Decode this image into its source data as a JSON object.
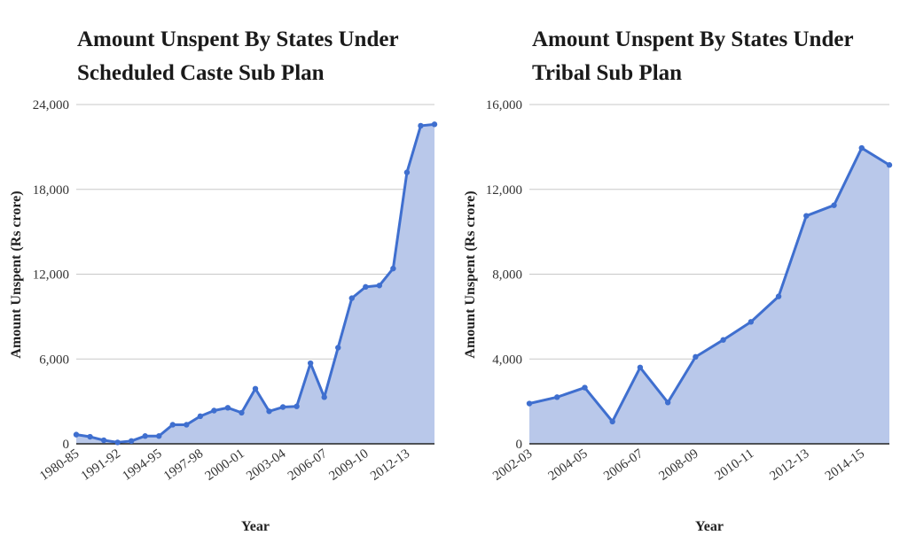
{
  "chart_data": [
    {
      "type": "area",
      "title": "Amount Unspent By States Under Scheduled Caste Sub Plan",
      "xlabel": "Year",
      "ylabel": "Amount Unspent (Rs crore)",
      "ylim": [
        0,
        24000
      ],
      "yticks": [
        "0",
        "6,000",
        "12,000",
        "18,000",
        "24,000"
      ],
      "ytick_values": [
        0,
        6000,
        12000,
        18000,
        24000
      ],
      "xtick_labels": [
        "1980-85",
        "1991-92",
        "1994-95",
        "1997-98",
        "2000-01",
        "2003-04",
        "2006-07",
        "2009-10",
        "2012-13"
      ],
      "xtick_indices": [
        0,
        3,
        6,
        9,
        12,
        15,
        18,
        21,
        24
      ],
      "values": [
        650,
        500,
        250,
        100,
        200,
        550,
        550,
        1350,
        1350,
        1950,
        2350,
        2550,
        2200,
        3900,
        2300,
        2600,
        2650,
        5700,
        3300,
        6800,
        10300,
        11100,
        11200,
        12400,
        19200,
        22500,
        22600
      ],
      "grid": true,
      "color": "#3f6fcf",
      "fill": "#b9c8ea"
    },
    {
      "type": "area",
      "title": "Amount Unspent By States Under Tribal Sub Plan",
      "xlabel": "Year",
      "ylabel": "Amount Unspent (Rs crore)",
      "ylim": [
        0,
        16000
      ],
      "yticks": [
        "0",
        "4,000",
        "8,000",
        "12,000",
        "16,000"
      ],
      "ytick_values": [
        0,
        4000,
        8000,
        12000,
        16000
      ],
      "xtick_labels": [
        "2002-03",
        "2004-05",
        "2006-07",
        "2008-09",
        "2010-11",
        "2012-13",
        "2014-15"
      ],
      "xtick_indices": [
        0,
        2,
        4,
        6,
        8,
        10,
        12
      ],
      "values": [
        1900,
        2200,
        2650,
        1050,
        3600,
        1950,
        4100,
        4900,
        5750,
        6950,
        10750,
        11250,
        13950,
        13150
      ],
      "grid": true,
      "color": "#3f6fcf",
      "fill": "#b9c8ea"
    }
  ]
}
